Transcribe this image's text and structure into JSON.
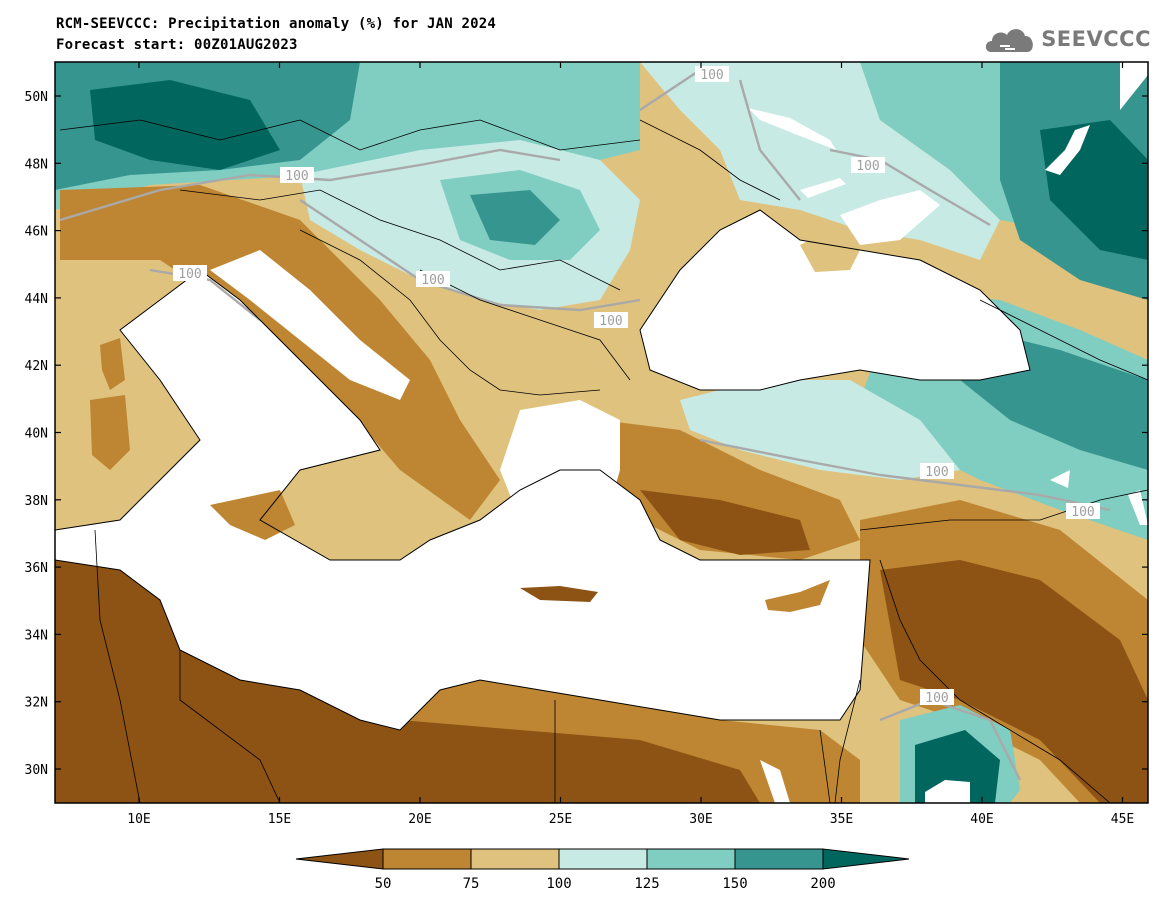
{
  "title": "RCM-SEEVCCC: Precipitation anomaly (%) for JAN 2024",
  "subtitle": "Forecast start: 00Z01AUG2023",
  "logo": {
    "text": "SEEVCCC",
    "icon": "cloud-icon"
  },
  "map": {
    "lon_ticks": [
      "10E",
      "15E",
      "20E",
      "25E",
      "30E",
      "35E",
      "40E",
      "45E"
    ],
    "lat_ticks": [
      "50N",
      "48N",
      "46N",
      "44N",
      "42N",
      "40N",
      "38N",
      "36N",
      "34N",
      "32N",
      "30N"
    ],
    "contour_label": "100",
    "contour_color": "#a9a9a9",
    "sea_color": "#ffffff"
  },
  "colorbar": {
    "labels": [
      "50",
      "75",
      "100",
      "125",
      "150",
      "200"
    ],
    "colors": [
      "#8c5314",
      "#be8532",
      "#dfc27e",
      "#c7eae5",
      "#80cdc1",
      "#36968f",
      "#01665e"
    ]
  }
}
